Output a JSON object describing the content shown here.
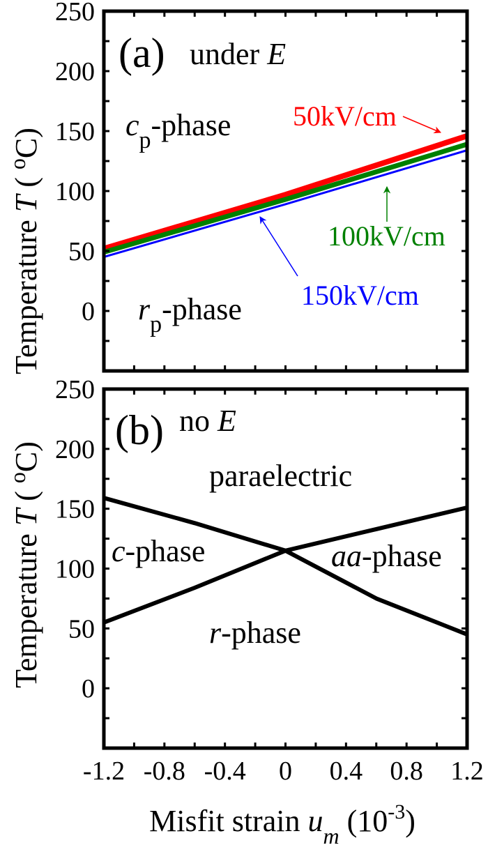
{
  "chart_data": [
    {
      "type": "line",
      "panel_label": "(a)",
      "condition": {
        "text": "under ",
        "italic": "E"
      },
      "xlabel": "Misfit strain",
      "ylabel": {
        "text": "Temperature",
        "symbol": "T",
        "unit_open": "( ",
        "unit_sup": "o",
        "unit_close": "C)"
      },
      "xlim": [
        -1.2,
        1.2
      ],
      "ylim": [
        -50,
        250
      ],
      "yticks": [
        0,
        50,
        100,
        150,
        200,
        250
      ],
      "x": [
        -1.2,
        0,
        1.2
      ],
      "series": [
        {
          "name": "50kV/cm",
          "color": "#ff0000",
          "values": [
            52,
            97,
            146
          ]
        },
        {
          "name": "100kV/cm",
          "color": "#008000",
          "values": [
            49,
            93,
            139
          ]
        },
        {
          "name": "150kV/cm",
          "color": "#0000ff",
          "values": [
            45,
            89,
            134
          ]
        }
      ],
      "regions": [
        {
          "italic": "c",
          "sub": "p",
          "text": "-phase"
        },
        {
          "italic": "r",
          "sub": "p",
          "text": "-phase"
        }
      ]
    },
    {
      "type": "line",
      "panel_label": "(b)",
      "condition": {
        "text": "no ",
        "italic": "E"
      },
      "xlim": [
        -1.2,
        1.2
      ],
      "ylim": [
        -50,
        250
      ],
      "yticks": [
        0,
        50,
        100,
        150,
        200,
        250
      ],
      "xticks": [
        "-1.2",
        "-0.8",
        "-0.4",
        "0",
        "0.4",
        "0.8",
        "1.2"
      ],
      "x": [
        -1.2,
        -0.6,
        0,
        0.6,
        1.2
      ],
      "series": [
        {
          "color": "#000000",
          "values": [
            159,
            138,
            115,
            75,
            45
          ]
        },
        {
          "color": "#000000",
          "values": [
            55,
            84,
            115,
            133,
            151
          ]
        }
      ],
      "regions": [
        {
          "text": "paraelectric"
        },
        {
          "italic": "c",
          "text": "-phase"
        },
        {
          "italic": "aa",
          "text": "-phase"
        },
        {
          "italic": "r",
          "text": "-phase"
        }
      ],
      "xlabel": {
        "text": "Misfit strain",
        "symbol": "u",
        "sub": "m",
        "unit_open": "(10",
        "unit_sup": "-3",
        "unit_close": ")"
      }
    }
  ]
}
